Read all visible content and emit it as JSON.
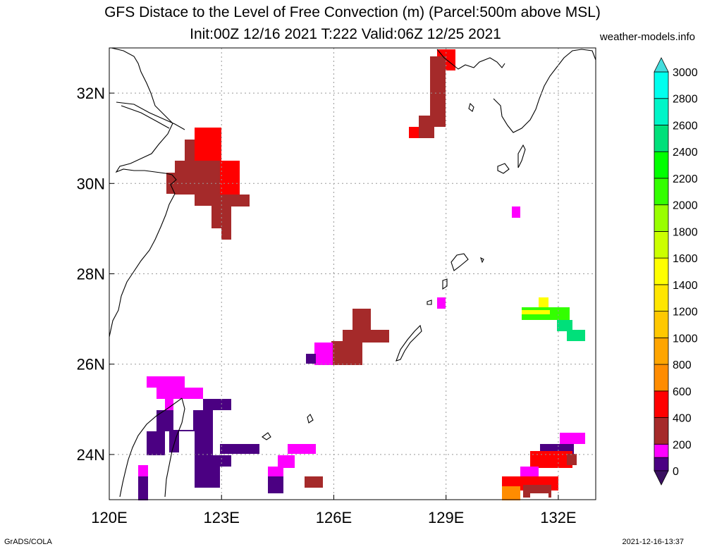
{
  "title_line1": "GFS Distace to the Level of Free Convection (m) (Parcel:500m above MSL)",
  "title_line2": "Init:00Z 12/16 2021 T:222 Valid:06Z 12/25 2021",
  "site": "weather-models.info",
  "footer_left": "GrADS/COLA",
  "footer_right": "2021-12-16-13:37",
  "map": {
    "lon_labels": [
      "120E",
      "123E",
      "126E",
      "129E",
      "132E"
    ],
    "lon_values": [
      120,
      123,
      126,
      129,
      132
    ],
    "lat_labels": [
      "24N",
      "26N",
      "28N",
      "30N",
      "32N"
    ],
    "lat_values": [
      24,
      26,
      28,
      30,
      32
    ],
    "lon_range": [
      120,
      133
    ],
    "lat_range": [
      23,
      33
    ],
    "grid": true
  },
  "colorbar": {
    "levels": [
      "0",
      "200",
      "400",
      "600",
      "800",
      "1000",
      "1200",
      "1400",
      "1600",
      "1800",
      "2000",
      "2200",
      "2400",
      "2600",
      "2800",
      "3000"
    ],
    "colors": [
      "#4b0082",
      "#ff00ff",
      "#a52a2a",
      "#ff0000",
      "#ff8c00",
      "#ffa500",
      "#ffc800",
      "#ffe600",
      "#ffff00",
      "#ccff00",
      "#99ff00",
      "#33ff00",
      "#00ff00",
      "#00e07a",
      "#00f5c8",
      "#00ffee",
      "#33ddcc"
    ],
    "under_color": "#3a1060",
    "over_color": "#44dddd"
  }
}
